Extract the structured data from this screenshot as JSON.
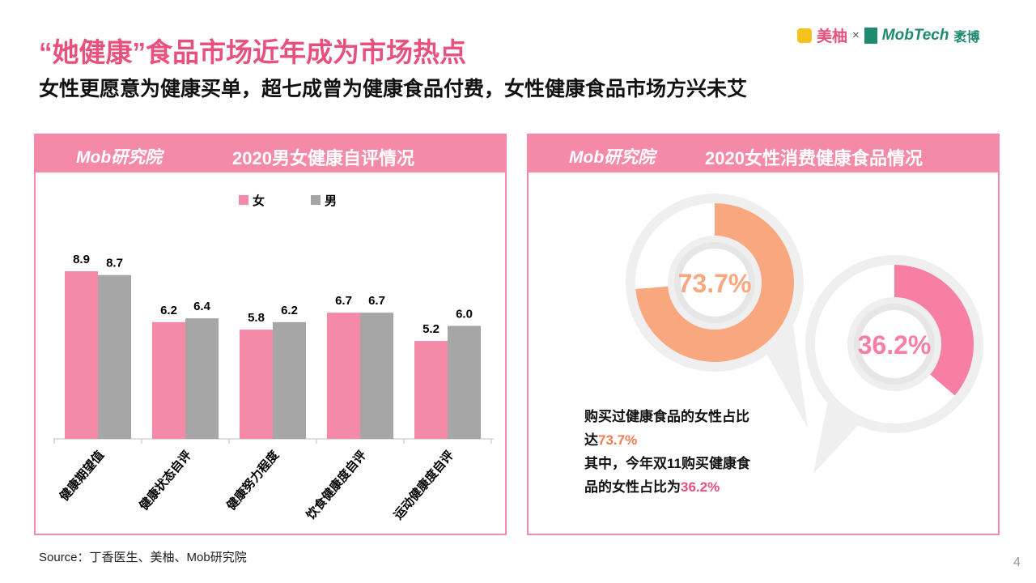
{
  "header": {
    "title": "“她健康”食品市场近年成为市场热点",
    "subtitle": "女性更愿意为健康买单，超七成曾为健康食品付费，女性健康食品市场方兴未艾",
    "logos": [
      "美柚",
      "×",
      "MobTech",
      "袤博"
    ],
    "panel_logo": "Mob研究院"
  },
  "chart_data": [
    {
      "type": "bar",
      "title": "2020男女健康自评情况",
      "categories": [
        "健康期望值",
        "健康状态自评",
        "健康努力程度",
        "饮食健康度自评",
        "运动健康度自评"
      ],
      "series": [
        {
          "name": "女",
          "color": "#f48aa8",
          "values": [
            8.9,
            6.2,
            5.8,
            6.7,
            5.2
          ],
          "value_labels": [
            "8.9",
            "6.2",
            "5.8",
            "6.7",
            "5.2"
          ]
        },
        {
          "name": "男",
          "color": "#a6a6a6",
          "values": [
            8.7,
            6.4,
            6.2,
            6.7,
            6.0
          ],
          "value_labels": [
            "8.7",
            "6.4",
            "6.2",
            "6.7",
            "6.0"
          ]
        }
      ]
    },
    {
      "type": "donut",
      "title": "2020女性消费健康食品情况",
      "values": [
        73.7,
        36.2
      ],
      "value_labels": [
        "73.7%",
        "36.2%"
      ],
      "colors": [
        "#f9a77f",
        "#f77fa4"
      ],
      "captions": [
        "购买过健康食品的女性占比达",
        "其中，今年双11购买健康食品的女性占比为"
      ]
    }
  ],
  "footer": {
    "source": "Source：丁香医生、美柚、Mob研究院",
    "page": "4"
  }
}
